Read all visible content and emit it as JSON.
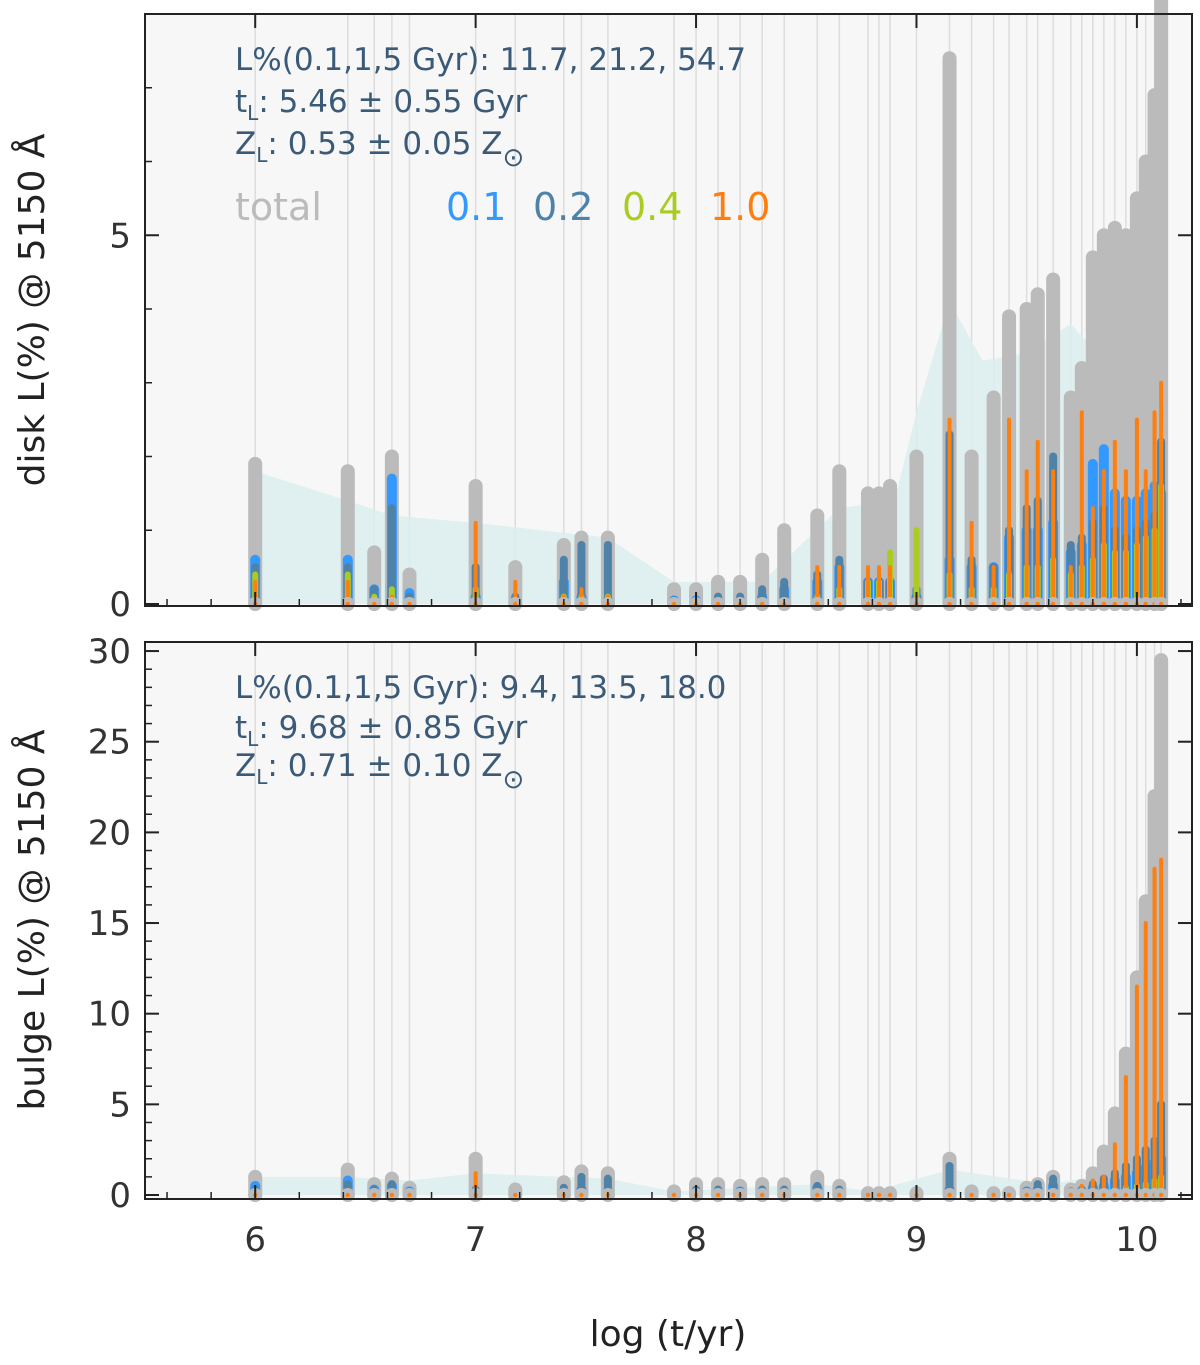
{
  "chart_data": [
    {
      "id": "disk",
      "type": "bar",
      "ylabel": "disk L(%) @ 5150 Å",
      "xlabel": "",
      "xlim": [
        5.5,
        10.25
      ],
      "ylim": [
        0,
        8.0
      ],
      "yticks": [
        0,
        5
      ],
      "xticks": [
        6,
        7,
        8,
        9,
        10
      ],
      "info": {
        "line1": "L%(0.1,1,5 Gyr): 11.7, 21.2, 54.7",
        "t_label": "t",
        "t_sub": "L",
        "t_value": ":  5.46 ±  0.55 Gyr",
        "z_label": "Z",
        "z_sub": "L",
        "z_value": ":  0.53 ±  0.05 Z",
        "z_sun": "⊙"
      },
      "legend": [
        {
          "label": "total",
          "color": "#bbbbbb"
        },
        {
          "label": "0.1",
          "color": "#3399ff"
        },
        {
          "label": "0.2",
          "color": "#4f82a8"
        },
        {
          "label": "0.4",
          "color": "#aacc22"
        },
        {
          "label": "1.0",
          "color": "#ff7f0e"
        }
      ],
      "ages": [
        6.0,
        6.42,
        6.54,
        6.62,
        6.7,
        7.0,
        7.18,
        7.4,
        7.48,
        7.6,
        7.9,
        8.0,
        8.1,
        8.2,
        8.3,
        8.4,
        8.55,
        8.65,
        8.78,
        8.83,
        8.88,
        9.0,
        9.15,
        9.25,
        9.35,
        9.42,
        9.5,
        9.55,
        9.62,
        9.7,
        9.75,
        9.8,
        9.85,
        9.9,
        9.95,
        10.0,
        10.04,
        10.08,
        10.11
      ],
      "series": [
        {
          "name": "total",
          "color": "#bbbbbb",
          "values": [
            1.9,
            1.8,
            0.7,
            2.0,
            0.4,
            1.6,
            0.5,
            0.8,
            0.9,
            0.9,
            0.2,
            0.2,
            0.3,
            0.3,
            0.6,
            1.0,
            1.2,
            1.8,
            1.5,
            1.5,
            1.6,
            2.0,
            7.4,
            2.0,
            2.8,
            3.9,
            4.0,
            4.2,
            4.4,
            2.8,
            3.2,
            4.7,
            5.0,
            5.1,
            5.0,
            5.5,
            6.0,
            6.9,
            8.2
          ]
        },
        {
          "name": "0.1",
          "color": "#3399ff",
          "values": [
            0.6,
            0.6,
            0.2,
            1.7,
            0.15,
            0.1,
            0.05,
            0.3,
            0.1,
            0.05,
            0.05,
            0.05,
            0.05,
            0.05,
            0.1,
            0.2,
            0.3,
            0.5,
            0.3,
            0.3,
            0.3,
            0.1,
            0.6,
            0.5,
            0.5,
            0.9,
            1.0,
            1.0,
            1.1,
            0.7,
            0.8,
            1.9,
            2.1,
            1.5,
            1.4,
            1.4,
            1.5,
            1.6,
            1.5
          ]
        },
        {
          "name": "0.2",
          "color": "#4f82a8",
          "values": [
            0.5,
            0.5,
            0.2,
            1.3,
            0.1,
            0.5,
            0.1,
            0.6,
            0.8,
            0.8,
            0.05,
            0.05,
            0.1,
            0.1,
            0.2,
            0.3,
            0.4,
            0.6,
            0.3,
            0.3,
            0.3,
            0.2,
            2.3,
            0.6,
            0.5,
            1.0,
            1.3,
            1.4,
            2.0,
            0.8,
            0.9,
            1.1,
            1.3,
            1.0,
            0.9,
            1.0,
            1.1,
            1.2,
            2.2
          ]
        },
        {
          "name": "0.4",
          "color": "#aacc22",
          "values": [
            0.4,
            0.4,
            0.1,
            0.2,
            0.05,
            0.2,
            0.05,
            0.1,
            0.1,
            0.1,
            0.0,
            0.0,
            0.0,
            0.0,
            0.05,
            0.05,
            0.1,
            0.2,
            0.3,
            0.3,
            0.7,
            1.0,
            0.4,
            0.2,
            0.2,
            0.4,
            0.5,
            0.5,
            0.6,
            0.4,
            0.5,
            0.6,
            0.8,
            0.7,
            0.7,
            0.8,
            0.9,
            1.0,
            1.6
          ]
        },
        {
          "name": "1.0",
          "color": "#ff7f0e",
          "values": [
            0.3,
            0.3,
            0.05,
            0.1,
            0.05,
            1.1,
            0.3,
            0.1,
            0.2,
            0.1,
            0.05,
            0.05,
            0.05,
            0.05,
            0.05,
            0.05,
            0.5,
            0.5,
            0.5,
            0.5,
            0.5,
            0.1,
            2.5,
            1.1,
            0.5,
            2.5,
            1.8,
            2.2,
            1.8,
            0.5,
            2.6,
            1.3,
            1.8,
            2.2,
            1.8,
            2.5,
            1.8,
            2.6,
            3.0
          ]
        }
      ],
      "envelope": {
        "x": [
          6.0,
          6.42,
          6.62,
          7.0,
          7.6,
          7.9,
          8.3,
          8.65,
          8.9,
          9.0,
          9.15,
          9.3,
          9.5,
          9.7,
          9.85,
          10.0,
          10.11
        ],
        "y": [
          1.8,
          1.4,
          1.2,
          1.1,
          0.9,
          0.3,
          0.3,
          1.3,
          1.4,
          2.6,
          4.1,
          3.3,
          3.4,
          3.8,
          3.3,
          3.2,
          1.8
        ]
      }
    },
    {
      "id": "bulge",
      "type": "bar",
      "ylabel": "bulge L(%) @ 5150 Å",
      "xlabel": "log (t/yr)",
      "xlim": [
        5.5,
        10.25
      ],
      "ylim": [
        0,
        30.5
      ],
      "yticks": [
        0,
        5,
        10,
        15,
        20,
        25,
        30
      ],
      "xticks": [
        6,
        7,
        8,
        9,
        10
      ],
      "info": {
        "line1": "L%(0.1,1,5 Gyr):  9.4, 13.5, 18.0",
        "t_label": "t",
        "t_sub": "L",
        "t_value": ":  9.68 ±  0.85 Gyr",
        "z_label": "Z",
        "z_sub": "L",
        "z_value": ":  0.71 ±  0.10 Z",
        "z_sun": "⊙"
      },
      "ages": [
        6.0,
        6.42,
        6.54,
        6.62,
        6.7,
        7.0,
        7.18,
        7.4,
        7.48,
        7.6,
        7.9,
        8.0,
        8.1,
        8.2,
        8.3,
        8.4,
        8.55,
        8.65,
        8.78,
        8.83,
        8.88,
        9.0,
        9.15,
        9.25,
        9.35,
        9.42,
        9.5,
        9.55,
        9.62,
        9.7,
        9.75,
        9.8,
        9.85,
        9.9,
        9.95,
        10.0,
        10.04,
        10.08,
        10.11
      ],
      "series": [
        {
          "name": "total",
          "color": "#bbbbbb",
          "values": [
            1.0,
            1.4,
            0.6,
            0.9,
            0.4,
            2.0,
            0.3,
            0.7,
            1.3,
            1.2,
            0.2,
            0.6,
            0.6,
            0.5,
            0.6,
            0.6,
            1.0,
            0.5,
            0.1,
            0.1,
            0.1,
            0.1,
            2.0,
            0.2,
            0.1,
            0.1,
            0.4,
            0.6,
            1.0,
            0.3,
            0.5,
            1.2,
            2.4,
            4.5,
            7.8,
            12.0,
            16.2,
            22.0,
            29.5
          ]
        },
        {
          "name": "0.1",
          "color": "#3399ff",
          "values": [
            0.5,
            0.8,
            0.3,
            0.5,
            0.2,
            0.1,
            0.05,
            0.2,
            0.3,
            0.2,
            0.05,
            0.2,
            0.2,
            0.2,
            0.2,
            0.2,
            0.4,
            0.2,
            0.0,
            0.0,
            0.0,
            0.0,
            0.3,
            0.05,
            0.0,
            0.0,
            0.2,
            0.3,
            0.5,
            0.1,
            0.2,
            0.4,
            0.5,
            0.8,
            1.0,
            1.2,
            1.5,
            1.8,
            2.0
          ]
        },
        {
          "name": "0.2",
          "color": "#4f82a8",
          "values": [
            0.3,
            0.6,
            0.3,
            0.6,
            0.2,
            0.3,
            0.1,
            0.4,
            1.0,
            0.9,
            0.05,
            0.3,
            0.3,
            0.2,
            0.3,
            0.3,
            0.5,
            0.3,
            0.0,
            0.0,
            0.0,
            0.0,
            1.6,
            0.1,
            0.0,
            0.0,
            0.2,
            0.6,
            0.9,
            0.2,
            0.3,
            0.6,
            0.9,
            1.2,
            1.6,
            2.0,
            2.5,
            3.0,
            5.0
          ]
        },
        {
          "name": "0.4",
          "color": "#aacc22",
          "values": [
            0.1,
            0.2,
            0.05,
            0.1,
            0.05,
            0.3,
            0.05,
            0.1,
            0.1,
            0.1,
            0.0,
            0.05,
            0.05,
            0.05,
            0.05,
            0.05,
            0.05,
            0.05,
            0.0,
            0.0,
            0.0,
            0.0,
            0.1,
            0.0,
            0.0,
            0.0,
            0.05,
            0.05,
            0.1,
            0.05,
            0.1,
            0.1,
            0.2,
            0.3,
            0.4,
            0.5,
            0.6,
            0.8,
            1.0
          ]
        },
        {
          "name": "1.0",
          "color": "#ff7f0e",
          "values": [
            0.1,
            0.2,
            0.05,
            0.1,
            0.05,
            1.2,
            0.05,
            0.1,
            0.2,
            0.1,
            0.0,
            0.05,
            0.05,
            0.05,
            0.05,
            0.05,
            0.1,
            0.05,
            0.0,
            0.0,
            0.0,
            0.0,
            0.1,
            0.0,
            0.0,
            0.0,
            0.05,
            0.05,
            0.1,
            0.05,
            0.5,
            0.8,
            1.0,
            2.8,
            6.5,
            11.5,
            15.0,
            18.0,
            18.5
          ]
        }
      ],
      "envelope": {
        "x": [
          6.0,
          6.42,
          6.7,
          7.0,
          7.6,
          7.9,
          8.55,
          8.8,
          9.15,
          9.6,
          9.8,
          10.0,
          10.11
        ],
        "y": [
          1.0,
          1.0,
          0.8,
          1.2,
          0.9,
          0.2,
          0.6,
          0.2,
          1.4,
          0.6,
          1.0,
          2.0,
          1.5
        ]
      }
    }
  ]
}
